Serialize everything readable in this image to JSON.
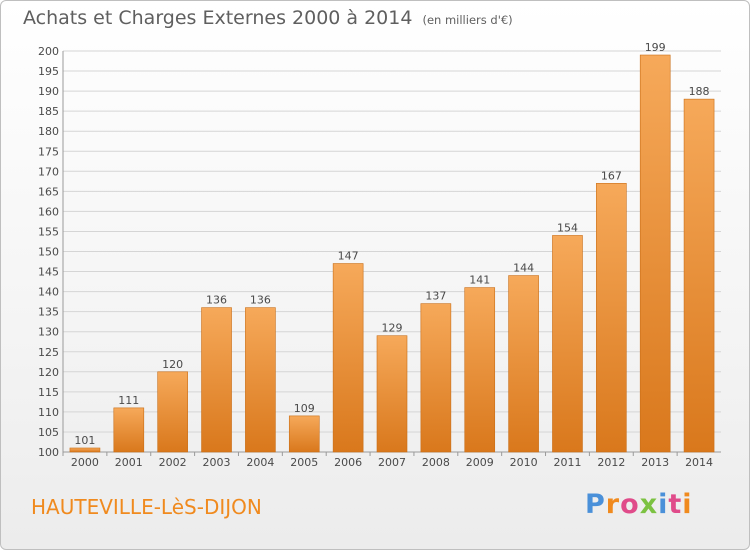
{
  "header": {
    "title": "Achats et Charges Externes 2000 à 2014",
    "subtitle": "(en milliers d'€)"
  },
  "footer": {
    "commune": "HAUTEVILLE-LèS-DIJON",
    "logo_text": "Proxiti"
  },
  "colors": {
    "bar_light": "#f6a95a",
    "bar_dark": "#d9781c",
    "grid": "#d5d5d5",
    "title": "#5f5f5f",
    "commune": "#f08a1e"
  },
  "chart_data": {
    "type": "bar",
    "title": "Achats et Charges Externes 2000 à 2014",
    "subtitle": "(en milliers d'€)",
    "xlabel": "",
    "ylabel": "",
    "categories": [
      "2000",
      "2001",
      "2002",
      "2003",
      "2004",
      "2005",
      "2006",
      "2007",
      "2008",
      "2009",
      "2010",
      "2011",
      "2012",
      "2013",
      "2014"
    ],
    "values": [
      101,
      111,
      120,
      136,
      136,
      109,
      147,
      129,
      137,
      141,
      144,
      154,
      167,
      199,
      188
    ],
    "ylim": [
      100,
      200
    ],
    "yticks": [
      100,
      105,
      110,
      115,
      120,
      125,
      130,
      135,
      140,
      145,
      150,
      155,
      160,
      165,
      170,
      175,
      180,
      185,
      190,
      195,
      200
    ],
    "grid": true,
    "data_labels": true
  }
}
